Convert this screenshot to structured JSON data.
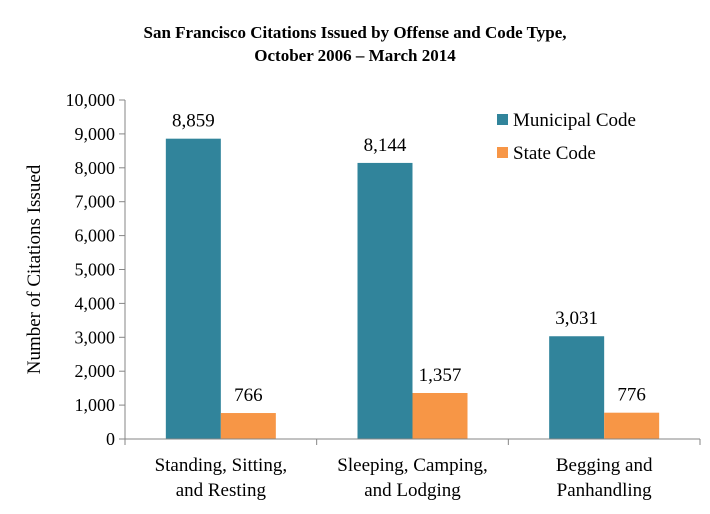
{
  "chart_data": {
    "type": "bar",
    "title": [
      "San Francisco Citations Issued by Offense and Code Type,",
      "October 2006 – March 2014"
    ],
    "xlabel": "",
    "ylabel": "Number of Citations Issued",
    "ylim": [
      0,
      10000
    ],
    "yticks": [
      0,
      1000,
      2000,
      3000,
      4000,
      5000,
      6000,
      7000,
      8000,
      9000,
      10000
    ],
    "ytick_labels": [
      "0",
      "1,000",
      "2,000",
      "3,000",
      "4,000",
      "5,000",
      "6,000",
      "7,000",
      "8,000",
      "9,000",
      "10,000"
    ],
    "categories": [
      [
        "Standing, Sitting,",
        "and Resting"
      ],
      [
        "Sleeping, Camping,",
        "and Lodging"
      ],
      [
        "Begging and",
        "Panhandling"
      ]
    ],
    "series": [
      {
        "name": "Municipal Code",
        "color": "#31849b",
        "values": [
          8859,
          8144,
          3031
        ],
        "labels": [
          "8,859",
          "8,144",
          "3,031"
        ]
      },
      {
        "name": "State Code",
        "color": "#f79646",
        "values": [
          766,
          1357,
          776
        ],
        "labels": [
          "766",
          "1,357",
          "776"
        ]
      }
    ],
    "legend_position": "top-right",
    "grid": false
  }
}
